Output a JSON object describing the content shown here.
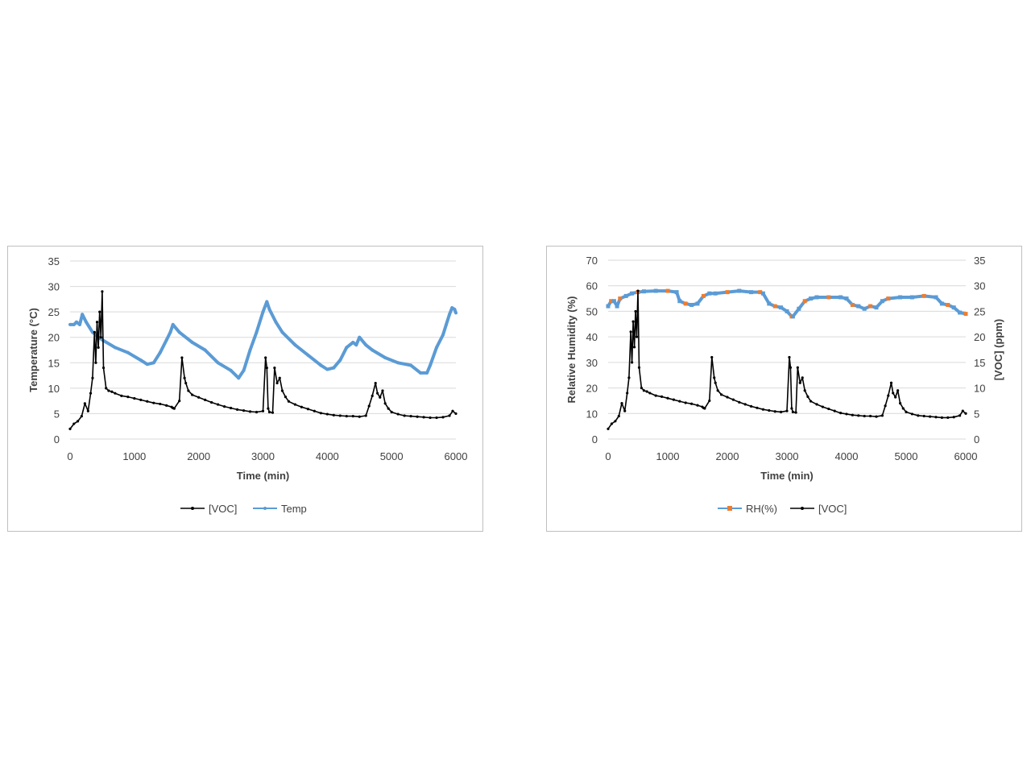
{
  "colors": {
    "voc": "#000000",
    "temp": "#5b9bd5",
    "rh": "#5b9bd5",
    "rh_marker": "#ed7d31",
    "grid": "#d9d9d9"
  },
  "chart_data": [
    {
      "type": "line",
      "title": "",
      "xlabel": "Time (min)",
      "ylabel": "Temperature (°C)",
      "xlim": [
        0,
        6000
      ],
      "ylim": [
        0,
        35
      ],
      "xticks": [
        "0",
        "1000",
        "2000",
        "3000",
        "4000",
        "5000",
        "6000"
      ],
      "yticks": [
        "0",
        "5",
        "10",
        "15",
        "20",
        "25",
        "30",
        "35"
      ],
      "legend": [
        "[VOC]",
        "Temp"
      ],
      "legend_position": "bottom",
      "series": [
        {
          "name": "[VOC]",
          "marker": "dot",
          "x": [
            0,
            60,
            120,
            180,
            230,
            280,
            320,
            350,
            380,
            400,
            420,
            440,
            460,
            480,
            500,
            520,
            560,
            600,
            650,
            700,
            800,
            900,
            1000,
            1100,
            1200,
            1300,
            1400,
            1500,
            1580,
            1600,
            1620,
            1700,
            1740,
            1780,
            1800,
            1840,
            1900,
            2000,
            2100,
            2200,
            2300,
            2400,
            2500,
            2600,
            2700,
            2800,
            2900,
            3000,
            3040,
            3060,
            3080,
            3100,
            3150,
            3180,
            3220,
            3260,
            3300,
            3350,
            3400,
            3500,
            3600,
            3700,
            3800,
            3900,
            4000,
            4100,
            4200,
            4300,
            4400,
            4500,
            4600,
            4650,
            4700,
            4750,
            4780,
            4820,
            4860,
            4900,
            4950,
            5000,
            5100,
            5200,
            5300,
            5400,
            5500,
            5600,
            5700,
            5800,
            5900,
            5950,
            6000
          ],
          "values": [
            2.0,
            3.0,
            3.5,
            4.5,
            7,
            5.5,
            9,
            12,
            21,
            15,
            23,
            18,
            25,
            20,
            29,
            14,
            10,
            9.5,
            9.3,
            9.0,
            8.5,
            8.3,
            8.0,
            7.7,
            7.4,
            7.1,
            6.9,
            6.6,
            6.3,
            6.1,
            6.0,
            7.5,
            16,
            12,
            11,
            9.5,
            8.7,
            8.2,
            7.7,
            7.2,
            6.8,
            6.4,
            6.1,
            5.8,
            5.6,
            5.4,
            5.3,
            5.5,
            16,
            14,
            6,
            5.3,
            5.2,
            14,
            11,
            12,
            9.5,
            8.3,
            7.4,
            6.8,
            6.3,
            5.9,
            5.5,
            5.1,
            4.9,
            4.7,
            4.6,
            4.5,
            4.5,
            4.4,
            4.6,
            6.5,
            8.5,
            11,
            9,
            8.2,
            9.5,
            7,
            6,
            5.3,
            4.9,
            4.6,
            4.5,
            4.4,
            4.3,
            4.2,
            4.2,
            4.3,
            4.6,
            5.5,
            5.0
          ]
        },
        {
          "name": "Temp",
          "marker": "dot",
          "x": [
            0,
            60,
            100,
            150,
            190,
            250,
            350,
            500,
            700,
            900,
            1100,
            1200,
            1300,
            1400,
            1500,
            1560,
            1600,
            1700,
            1900,
            2100,
            2300,
            2500,
            2620,
            2700,
            2800,
            2900,
            3000,
            3060,
            3100,
            3200,
            3300,
            3500,
            3700,
            3900,
            4000,
            4100,
            4200,
            4300,
            4400,
            4450,
            4500,
            4600,
            4700,
            4900,
            5100,
            5300,
            5450,
            5550,
            5600,
            5700,
            5800,
            5850,
            5900,
            5940,
            5980,
            6000
          ],
          "values": [
            22.5,
            22.5,
            23,
            22.5,
            24.5,
            23,
            21,
            19.5,
            18,
            17,
            15.5,
            14.7,
            15,
            17,
            19.5,
            21,
            22.5,
            21,
            19,
            17.5,
            15,
            13.5,
            12,
            13.5,
            17.5,
            21,
            25,
            27,
            25.5,
            23,
            21,
            18.5,
            16.5,
            14.5,
            13.7,
            14,
            15.5,
            18,
            19,
            18.5,
            20,
            18.5,
            17.5,
            16,
            15,
            14.5,
            13,
            13,
            14.5,
            18,
            20.5,
            22.5,
            24.5,
            25.8,
            25.5,
            24.8
          ]
        }
      ]
    },
    {
      "type": "line",
      "title": "",
      "xlabel": "Time (min)",
      "ylabel": "Relative Humidity (%)",
      "y2label": "[VOC] (ppm)",
      "xlim": [
        0,
        6000
      ],
      "ylim": [
        0,
        70
      ],
      "y2lim": [
        0,
        35
      ],
      "xticks": [
        "0",
        "1000",
        "2000",
        "3000",
        "4000",
        "5000",
        "6000"
      ],
      "yticks": [
        "0",
        "10",
        "20",
        "30",
        "40",
        "50",
        "60",
        "70"
      ],
      "y2ticks": [
        "0",
        "5",
        "10",
        "15",
        "20",
        "25",
        "30",
        "35"
      ],
      "legend": [
        "RH(%)",
        "[VOC]"
      ],
      "legend_position": "bottom",
      "series": [
        {
          "name": "RH(%)",
          "axis": "left",
          "marker": "square",
          "x": [
            0,
            50,
            100,
            150,
            200,
            300,
            400,
            500,
            600,
            800,
            1000,
            1150,
            1200,
            1300,
            1400,
            1500,
            1600,
            1700,
            1800,
            2000,
            2200,
            2400,
            2550,
            2600,
            2700,
            2800,
            2900,
            3000,
            3080,
            3100,
            3200,
            3300,
            3400,
            3500,
            3700,
            3900,
            4000,
            4100,
            4200,
            4300,
            4400,
            4500,
            4600,
            4700,
            4900,
            5100,
            5300,
            5500,
            5600,
            5700,
            5800,
            5900,
            6000
          ],
          "values": [
            52,
            54,
            54,
            52,
            55,
            56,
            57,
            57.5,
            57.8,
            58,
            58,
            57.5,
            54,
            53,
            52.5,
            53,
            56,
            57,
            57,
            57.5,
            58,
            57.5,
            57.5,
            57,
            53,
            52,
            51.5,
            50,
            48,
            48,
            51,
            54,
            55,
            55.5,
            55.5,
            55.5,
            55,
            52.5,
            52,
            51,
            52,
            51.5,
            54,
            55,
            55.5,
            55.5,
            56,
            55.5,
            53,
            52.5,
            51.5,
            49.5,
            49
          ]
        },
        {
          "name": "[VOC]",
          "axis": "right",
          "marker": "dot",
          "x": [
            0,
            60,
            120,
            180,
            230,
            280,
            320,
            350,
            380,
            400,
            420,
            440,
            460,
            480,
            500,
            520,
            560,
            600,
            650,
            700,
            800,
            900,
            1000,
            1100,
            1200,
            1300,
            1400,
            1500,
            1580,
            1600,
            1620,
            1700,
            1740,
            1780,
            1800,
            1840,
            1900,
            2000,
            2100,
            2200,
            2300,
            2400,
            2500,
            2600,
            2700,
            2800,
            2900,
            3000,
            3040,
            3060,
            3080,
            3100,
            3150,
            3180,
            3220,
            3260,
            3300,
            3350,
            3400,
            3500,
            3600,
            3700,
            3800,
            3900,
            4000,
            4100,
            4200,
            4300,
            4400,
            4500,
            4600,
            4650,
            4700,
            4750,
            4780,
            4820,
            4860,
            4900,
            4950,
            5000,
            5100,
            5200,
            5300,
            5400,
            5500,
            5600,
            5700,
            5800,
            5900,
            5950,
            6000
          ],
          "values": [
            2.0,
            3.0,
            3.5,
            4.5,
            7,
            5.5,
            9,
            12,
            21,
            15,
            23,
            18,
            25,
            20,
            29,
            14,
            10,
            9.5,
            9.3,
            9.0,
            8.5,
            8.3,
            8.0,
            7.7,
            7.4,
            7.1,
            6.9,
            6.6,
            6.3,
            6.1,
            6.0,
            7.5,
            16,
            12,
            11,
            9.5,
            8.7,
            8.2,
            7.7,
            7.2,
            6.8,
            6.4,
            6.1,
            5.8,
            5.6,
            5.4,
            5.3,
            5.5,
            16,
            14,
            6,
            5.3,
            5.2,
            14,
            11,
            12,
            9.5,
            8.3,
            7.4,
            6.8,
            6.3,
            5.9,
            5.5,
            5.1,
            4.9,
            4.7,
            4.6,
            4.5,
            4.5,
            4.4,
            4.6,
            6.5,
            8.5,
            11,
            9,
            8.2,
            9.5,
            7,
            6,
            5.3,
            4.9,
            4.6,
            4.5,
            4.4,
            4.3,
            4.2,
            4.2,
            4.3,
            4.6,
            5.5,
            5.0
          ]
        }
      ]
    }
  ]
}
